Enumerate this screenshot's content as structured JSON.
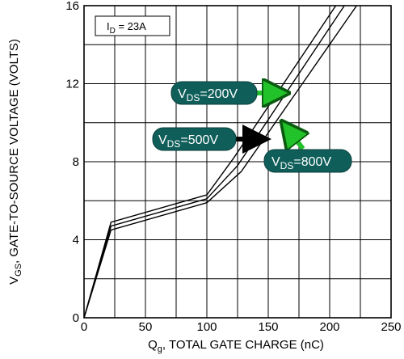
{
  "chart_data": {
    "type": "line",
    "xlim": [
      0,
      250
    ],
    "ylim": [
      0,
      16
    ],
    "x_ticks": [
      "0",
      "50",
      "100",
      "150",
      "200",
      "250"
    ],
    "y_ticks": [
      "0",
      "4",
      "8",
      "12",
      "16"
    ],
    "grid": true,
    "xlabel": {
      "main": "Q",
      "sub": "g",
      "rest": ", TOTAL GATE CHARGE (nC)"
    },
    "ylabel": {
      "main": "V",
      "sub": "GS",
      "rest": ", GATE-TO-SOURCE  VOLTAGE (VOLTS)"
    },
    "condition_label": {
      "main": "I",
      "sub": "D",
      "rest": " = 23A"
    },
    "series": [
      {
        "name": "VDS=200V",
        "label": {
          "main": "V",
          "sub": "DS",
          "rest": "=200V"
        },
        "arrow_color": "#22c22a",
        "x": [
          0,
          22,
          100,
          122,
          205
        ],
        "y": [
          0,
          4.9,
          6.3,
          8.2,
          16
        ]
      },
      {
        "name": "VDS=500V",
        "label": {
          "main": "V",
          "sub": "DS",
          "rest": "=500V"
        },
        "arrow_color": "#000000",
        "x": [
          0,
          22,
          100,
          125,
          212
        ],
        "y": [
          0,
          4.7,
          6.1,
          7.8,
          16
        ]
      },
      {
        "name": "VDS=800V",
        "label": {
          "main": "V",
          "sub": "DS",
          "rest": "=800V"
        },
        "arrow_color": "#22c22a",
        "x": [
          0,
          22,
          100,
          128,
          222
        ],
        "y": [
          0,
          4.5,
          5.9,
          7.5,
          16
        ]
      }
    ]
  }
}
